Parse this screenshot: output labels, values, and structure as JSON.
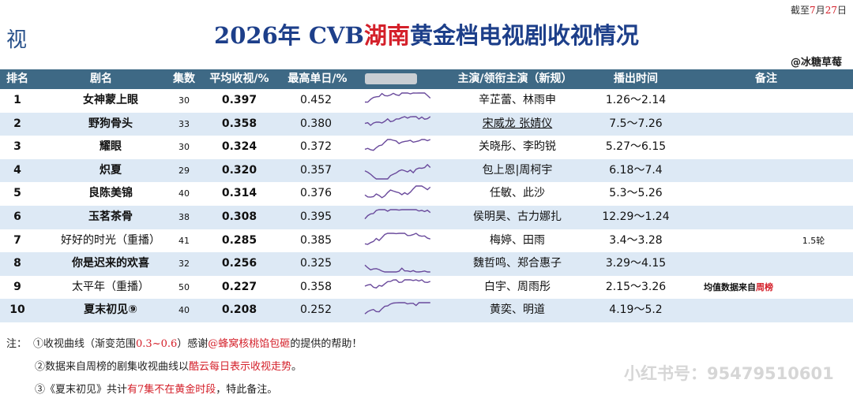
{
  "date": {
    "prefix": "截至",
    "month": "7",
    "mid": "月",
    "day": "27",
    "suffix": "日"
  },
  "logo": "视",
  "title": {
    "a": "2026年 CVB",
    "b": "湖南",
    "c": "黄金档电视剧收视情况"
  },
  "author": "@冰糖草莓",
  "table": {
    "headers": [
      "排名",
      "剧名",
      "集数",
      "平均收视/%",
      "最高单日/%",
      "主演/领衔主演（新规）",
      "播出时间",
      "备注"
    ],
    "rows": [
      {
        "rank": 1,
        "name": "女神蒙上眼",
        "episodes": 30,
        "avg": "0.397",
        "max": "0.452",
        "cast": "辛芷蕾、林雨申",
        "period": "1.26～2.14"
      },
      {
        "rank": 2,
        "name": "野狗骨头",
        "episodes": 33,
        "avg": "0.358",
        "max": "0.380",
        "cast": "宋威龙 张婧仪",
        "period": "7.5～7.26"
      },
      {
        "rank": 3,
        "name": "耀眼",
        "episodes": 30,
        "avg": "0.324",
        "max": "0.372",
        "cast": "关晓彤、李昀锐",
        "period": "5.27～6.15"
      },
      {
        "rank": 4,
        "name": "炽夏",
        "episodes": 29,
        "avg": "0.320",
        "max": "0.357",
        "cast": "包上恩|周柯宇",
        "period": "6.18～7.4"
      },
      {
        "rank": 5,
        "name": "良陈美锦",
        "episodes": 40,
        "avg": "0.314",
        "max": "0.376",
        "cast": "任敏、此沙",
        "period": "5.3～5.26"
      },
      {
        "rank": 6,
        "name": "玉茗茶骨",
        "episodes": 38,
        "avg": "0.308",
        "max": "0.395",
        "cast": "侯明昊、古力娜扎",
        "period": "12.29～1.24"
      },
      {
        "rank": 7,
        "name": "好好的时光（重播）",
        "episodes": 41,
        "avg": "0.285",
        "max": "0.385",
        "cast": "梅婷、田雨",
        "period": "3.4～3.28",
        "note": [
          "1.5轮"
        ]
      },
      {
        "rank": 8,
        "name": "你是迟来的欢喜",
        "episodes": 32,
        "avg": "0.256",
        "max": "0.325",
        "cast": "魏哲鸣、郑合惠子",
        "period": "3.29～4.15"
      },
      {
        "rank": 9,
        "name": "太平年（重播）",
        "episodes": 50,
        "avg": "0.227",
        "max": "0.358",
        "cast": "白宇、周雨彤",
        "period": "2.15～3.26",
        "note": [
          "均值数据来自",
          "周榜"
        ]
      },
      {
        "rank": 10,
        "name": "夏末初见⑨",
        "episodes": 40,
        "avg": "0.208",
        "max": "0.252",
        "cast": "黄奕、明道",
        "period": "4.19～5.2"
      }
    ]
  },
  "notes": {
    "label": "注：",
    "items": [
      [
        "①收视曲线（渐变范围",
        "0.3~0.6",
        "）感谢",
        "@蜂窝核桃馅包砸",
        "的提供的帮助！"
      ],
      [
        "②数据来自周榜的剧集收视曲线以",
        "酷云每日表示收视走势",
        "。"
      ],
      [
        "③《夏末初见》共计",
        "有7集不在黄金时段",
        "，特此备注。"
      ]
    ]
  },
  "watermark": "小红书号：95479510601"
}
